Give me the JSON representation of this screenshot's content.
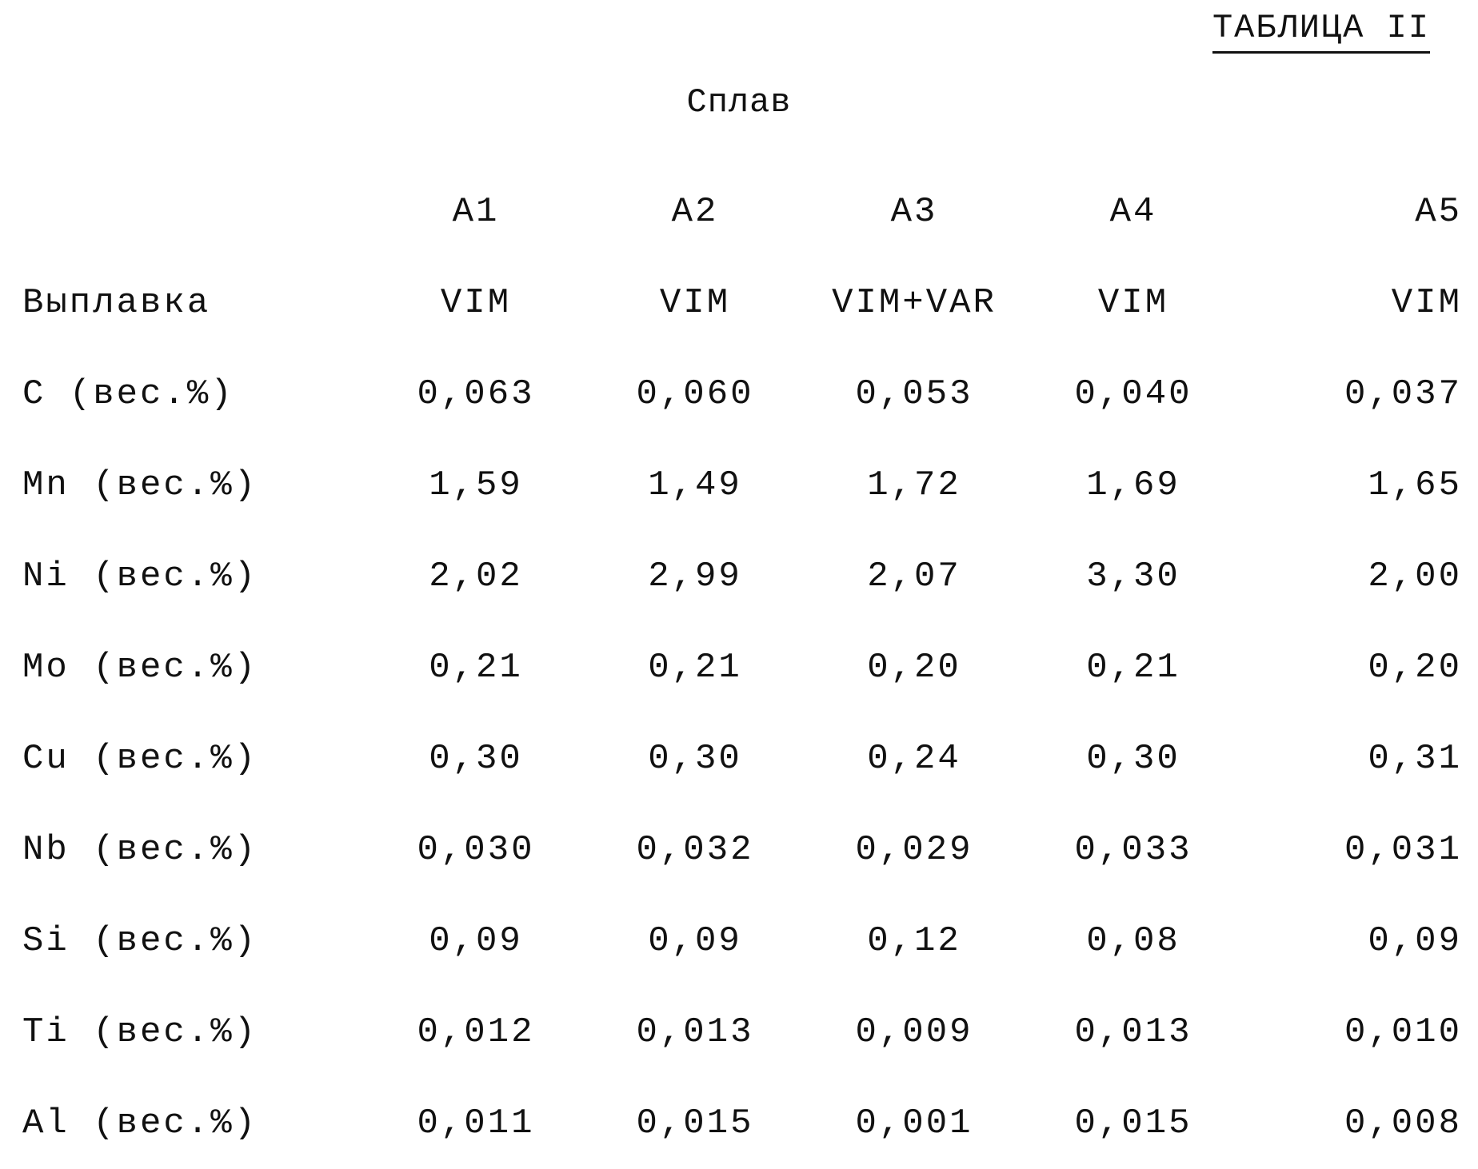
{
  "title": "ТАБЛИЦА II",
  "caption": "Сплав",
  "columns": [
    "A1",
    "A2",
    "A3",
    "A4",
    "A5"
  ],
  "rows": [
    {
      "label": "Выплавка",
      "values": [
        "VIM",
        "VIM",
        "VIM+VAR",
        "VIM",
        "VIM"
      ]
    },
    {
      "label": "C (вес.%)",
      "values": [
        "0,063",
        "0,060",
        "0,053",
        "0,040",
        "0,037"
      ]
    },
    {
      "label": "Mn (вес.%)",
      "values": [
        "1,59",
        "1,49",
        "1,72",
        "1,69",
        "1,65"
      ]
    },
    {
      "label": "Ni (вес.%)",
      "values": [
        "2,02",
        "2,99",
        "2,07",
        "3,30",
        "2,00"
      ]
    },
    {
      "label": "Mo (вес.%)",
      "values": [
        "0,21",
        "0,21",
        "0,20",
        "0,21",
        "0,20"
      ]
    },
    {
      "label": "Cu (вес.%)",
      "values": [
        "0,30",
        "0,30",
        "0,24",
        "0,30",
        "0,31"
      ]
    },
    {
      "label": "Nb (вес.%)",
      "values": [
        "0,030",
        "0,032",
        "0,029",
        "0,033",
        "0,031"
      ]
    },
    {
      "label": "Si (вес.%)",
      "values": [
        "0,09",
        "0,09",
        "0,12",
        "0,08",
        "0,09"
      ]
    },
    {
      "label": "Ti (вес.%)",
      "values": [
        "0,012",
        "0,013",
        "0,009",
        "0,013",
        "0,010"
      ]
    },
    {
      "label": "Al (вес.%)",
      "values": [
        "0,011",
        "0,015",
        "0,001",
        "0,015",
        "0,008"
      ]
    }
  ]
}
